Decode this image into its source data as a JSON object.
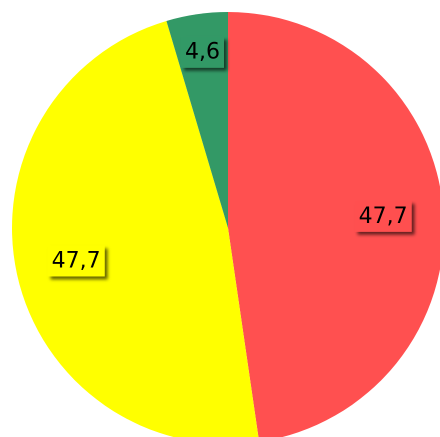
{
  "chart_data": {
    "type": "pie",
    "categories": [
      null,
      null,
      null
    ],
    "values": [
      47.7,
      47.7,
      4.6
    ],
    "value_labels": [
      "47,7",
      "47,7",
      "4,6"
    ],
    "colors": [
      "#ff5050",
      "#ffff00",
      "#339966"
    ]
  }
}
